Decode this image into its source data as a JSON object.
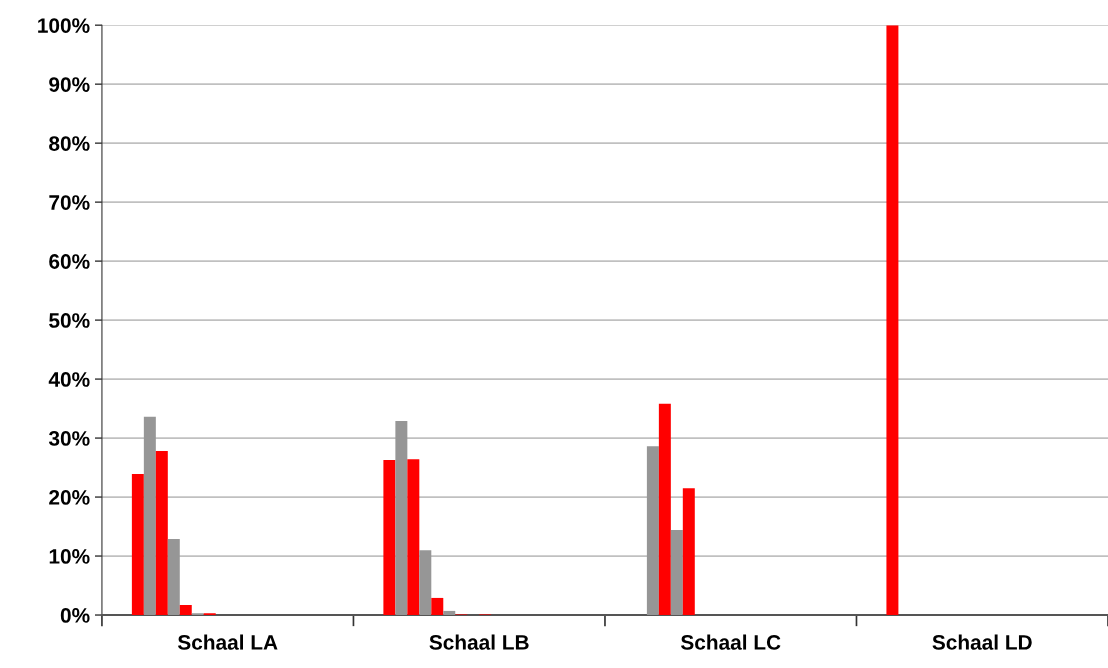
{
  "chart_data": {
    "type": "bar",
    "categories": [
      "Schaal LA",
      "Schaal LB",
      "Schaal LC",
      "Schaal LD"
    ],
    "series": [
      {
        "color": "#ff0000",
        "values": [
          23.9,
          26.3,
          0,
          100
        ]
      },
      {
        "color": "#969696",
        "values": [
          33.6,
          32.9,
          28.6,
          0
        ]
      },
      {
        "color": "#ff0000",
        "values": [
          27.8,
          26.4,
          35.8,
          0
        ]
      },
      {
        "color": "#969696",
        "values": [
          12.9,
          11.0,
          14.4,
          0
        ]
      },
      {
        "color": "#ff0000",
        "values": [
          1.7,
          2.9,
          21.5,
          0
        ]
      },
      {
        "color": "#969696",
        "values": [
          0.3,
          0.7,
          0,
          0
        ]
      },
      {
        "color": "#ff0000",
        "values": [
          0.3,
          0.1,
          0,
          0
        ]
      },
      {
        "color": "#969696",
        "values": [
          0,
          0,
          0,
          0
        ]
      },
      {
        "color": "#ff0000",
        "values": [
          0,
          0.1,
          0,
          0
        ]
      },
      {
        "color": "#969696",
        "values": [
          0,
          0,
          0,
          0
        ]
      },
      {
        "color": "#ff0000",
        "values": [
          0,
          0,
          0,
          0
        ]
      },
      {
        "color": "#969696",
        "values": [
          0,
          0,
          0,
          0
        ]
      },
      {
        "color": "#ff0000",
        "values": [
          0,
          0,
          0,
          0
        ]
      },
      {
        "color": "#969696",
        "values": [
          0,
          0,
          0,
          0
        ]
      },
      {
        "color": "#ff0000",
        "values": [
          0,
          0,
          0,
          0
        ]
      },
      {
        "color": "#969696",
        "values": [
          0,
          0,
          0,
          0
        ]
      }
    ],
    "ylim": [
      0,
      100
    ],
    "yticks": [
      {
        "value": 0,
        "label": "0%"
      },
      {
        "value": 10,
        "label": "10%"
      },
      {
        "value": 20,
        "label": "20%"
      },
      {
        "value": 30,
        "label": "30%"
      },
      {
        "value": 40,
        "label": "40%"
      },
      {
        "value": 50,
        "label": "50%"
      },
      {
        "value": 60,
        "label": "60%"
      },
      {
        "value": 70,
        "label": "70%"
      },
      {
        "value": 80,
        "label": "80%"
      },
      {
        "value": 90,
        "label": "90%"
      },
      {
        "value": 100,
        "label": "100%"
      }
    ],
    "grid": "y",
    "legend": false
  }
}
